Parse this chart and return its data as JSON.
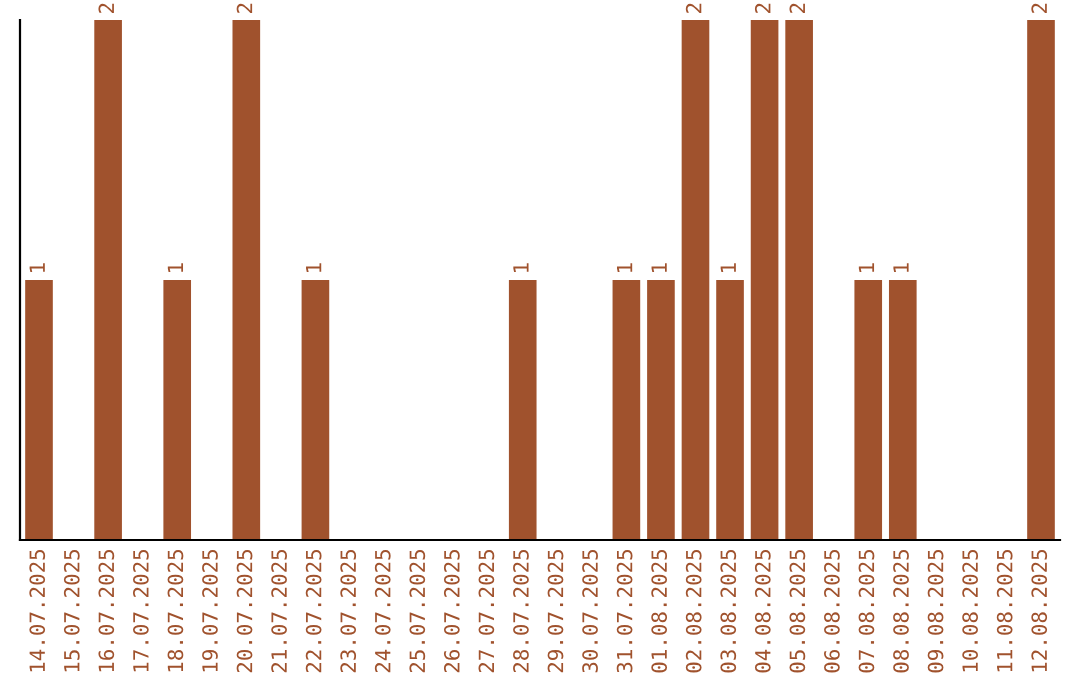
{
  "chart_data": {
    "type": "bar",
    "tick_labels": "x",
    "color": "#a0522d",
    "ylim": [
      0,
      2
    ],
    "categories": [
      "14.07.2025",
      "15.07.2025",
      "16.07.2025",
      "17.07.2025",
      "18.07.2025",
      "19.07.2025",
      "20.07.2025",
      "21.07.2025",
      "22.07.2025",
      "23.07.2025",
      "24.07.2025",
      "25.07.2025",
      "26.07.2025",
      "27.07.2025",
      "28.07.2025",
      "29.07.2025",
      "30.07.2025",
      "31.07.2025",
      "01.08.2025",
      "02.08.2025",
      "03.08.2025",
      "04.08.2025",
      "05.08.2025",
      "06.08.2025",
      "07.08.2025",
      "08.08.2025",
      "09.08.2025",
      "10.08.2025",
      "11.08.2025",
      "12.08.2025"
    ],
    "values": [
      1,
      0,
      2,
      0,
      1,
      0,
      2,
      0,
      1,
      0,
      0,
      0,
      0,
      0,
      1,
      0,
      0,
      1,
      1,
      2,
      1,
      2,
      2,
      0,
      1,
      1,
      0,
      0,
      0,
      2
    ],
    "value_labels": [
      "1",
      null,
      "2",
      null,
      "1",
      null,
      "2",
      null,
      "1",
      null,
      null,
      null,
      null,
      null,
      "1",
      null,
      null,
      "1",
      "1",
      "2",
      "1",
      "2",
      "2",
      null,
      "1",
      "1",
      null,
      null,
      null,
      "2"
    ]
  }
}
